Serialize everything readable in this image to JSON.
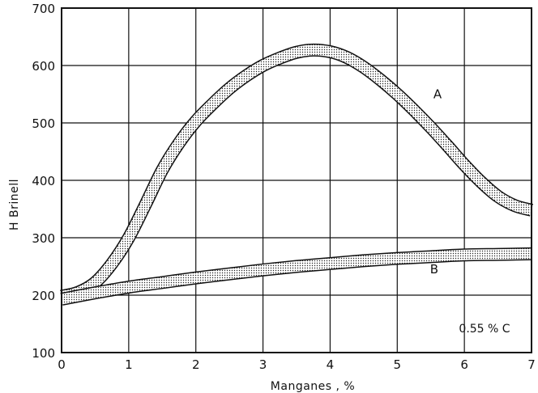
{
  "chart_data": {
    "type": "line",
    "xlabel": "Manganes  , %",
    "ylabel": "H Brinell",
    "xlim": [
      0,
      7
    ],
    "ylim": [
      100,
      700
    ],
    "x_ticks": [
      0,
      1,
      2,
      3,
      4,
      5,
      6,
      7
    ],
    "y_ticks": [
      100,
      200,
      300,
      400,
      500,
      600,
      700
    ],
    "grid": true,
    "band_width": 16,
    "series": [
      {
        "name": "A",
        "x": [
          0,
          0.25,
          0.5,
          0.75,
          1,
          1.25,
          1.5,
          1.75,
          2,
          2.25,
          2.5,
          2.75,
          3,
          3.25,
          3.5,
          3.75,
          4,
          4.25,
          4.5,
          4.75,
          5,
          5.25,
          5.5,
          5.75,
          6,
          6.25,
          6.5,
          6.75,
          7
        ],
        "y": [
          198,
          205,
          222,
          255,
          300,
          358,
          418,
          465,
          503,
          533,
          560,
          582,
          600,
          613,
          623,
          627,
          624,
          614,
          597,
          575,
          550,
          522,
          492,
          460,
          427,
          397,
          372,
          356,
          348
        ]
      },
      {
        "name": "B",
        "x": [
          0,
          0.5,
          1,
          1.5,
          2,
          2.5,
          3,
          3.5,
          4,
          4.5,
          5,
          5.5,
          6,
          6.5,
          7
        ],
        "y": [
          193,
          204,
          214,
          222,
          230,
          237,
          244,
          250,
          255,
          260,
          264,
          267,
          270,
          271,
          272
        ]
      }
    ],
    "series_labels": [
      {
        "text": "A",
        "x": 5.6,
        "y": 543
      },
      {
        "text": "B",
        "x": 5.55,
        "y": 238
      }
    ],
    "annotations": [
      {
        "text": "0.55 % C",
        "x": 6.3,
        "y": 135
      }
    ]
  }
}
